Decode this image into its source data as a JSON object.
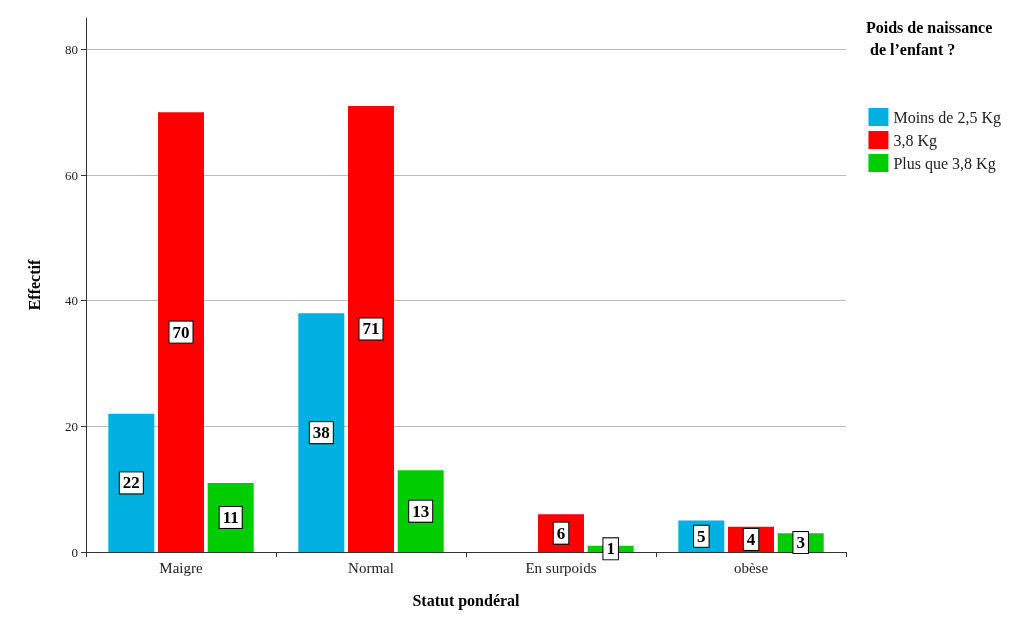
{
  "chart_data": {
    "type": "bar",
    "xlabel": "Statut pondéral",
    "ylabel": "Effectif",
    "legend_title": "Poids de naissance de l’enfant ?",
    "categories": [
      "Maigre",
      "Normal",
      "En surpoids",
      "obèse"
    ],
    "series": [
      {
        "name": "Moins de 2,5 Kg",
        "color": "#00b0e0",
        "values": [
          22,
          38,
          null,
          5
        ]
      },
      {
        "name": "3,8 Kg",
        "color": "#ff0000",
        "values": [
          70,
          71,
          6,
          4
        ]
      },
      {
        "name": "Plus que 3,8 Kg",
        "color": "#00cc00",
        "values": [
          11,
          13,
          1,
          3
        ]
      }
    ],
    "ylim": [
      0,
      85
    ],
    "yticks": [
      0,
      20,
      40,
      60,
      80
    ],
    "grid": "y",
    "legend": "top right",
    "data_labels": true
  }
}
